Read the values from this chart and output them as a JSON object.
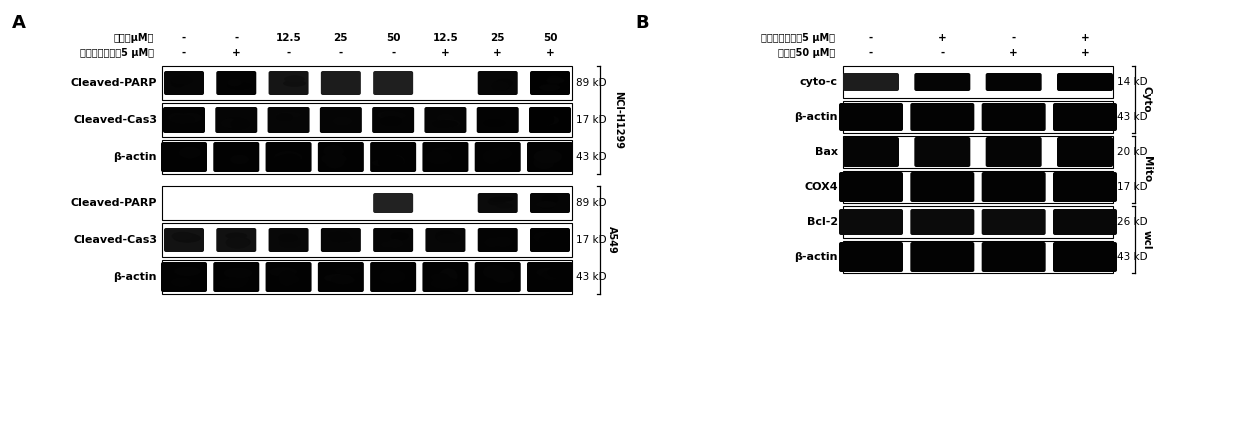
{
  "fig_width": 12.4,
  "fig_height": 4.26,
  "bg_color": "#ffffff",
  "panel_A": {
    "label": "A",
    "header_row1_label": "顺钓（μM）",
    "header_row1_values": [
      "-",
      "-",
      "12.5",
      "25",
      "50",
      "12.5",
      "25",
      "50"
    ],
    "header_row2_label": "蝠蝠葫苏林筹（5 μM）",
    "header_row2_values": [
      "-",
      "+",
      "-",
      "-",
      "-",
      "+",
      "+",
      "+"
    ],
    "ncih_label": "NCI-H1299",
    "a549_label": "A549",
    "rows_ncih": [
      {
        "name": "Cleaved-PARP",
        "kd": "89 kD"
      },
      {
        "name": "Cleaved-Cas3",
        "kd": "17 kD"
      },
      {
        "name": "β-actin",
        "kd": "43 kD"
      }
    ],
    "rows_a549": [
      {
        "name": "Cleaved-PARP",
        "kd": "89 kD"
      },
      {
        "name": "Cleaved-Cas3",
        "kd": "17 kD"
      },
      {
        "name": "β-actin",
        "kd": "43 kD"
      }
    ]
  },
  "panel_B": {
    "label": "B",
    "header_row1_label": "蝠蝠葫苏林筹（5 μM）",
    "header_row1_values": [
      "-",
      "+",
      "-",
      "+"
    ],
    "header_row2_label": "顺钓（50 μM）",
    "header_row2_values": [
      "-",
      "-",
      "+",
      "+"
    ],
    "cyto_label": "Cyto",
    "mito_label": "Mito",
    "wcl_label": "wcl",
    "rows": [
      {
        "name": "cyto-c",
        "kd": "14 kD",
        "group": "Cyto"
      },
      {
        "name": "β-actin",
        "kd": "43 kD",
        "group": "Cyto"
      },
      {
        "name": "Bax",
        "kd": "20 kD",
        "group": "Mito"
      },
      {
        "name": "COX4",
        "kd": "17 kD",
        "group": "Mito"
      },
      {
        "name": "Bcl-2",
        "kd": "26 kD",
        "group": "wcl"
      },
      {
        "name": "β-actin",
        "kd": "43 kD",
        "group": "wcl"
      }
    ]
  },
  "ncih_parp_bands": [
    0.85,
    0.92,
    0.45,
    0.28,
    0.18,
    0.0,
    0.82,
    0.97
  ],
  "ncih_cas3_bands": [
    0.92,
    0.88,
    0.85,
    0.87,
    0.9,
    0.86,
    0.93,
    0.97
  ],
  "ncih_bactin_bands": [
    0.95,
    0.95,
    0.95,
    0.95,
    0.95,
    0.95,
    0.95,
    0.95
  ],
  "a549_parp_bands": [
    0.0,
    0.0,
    0.0,
    0.0,
    0.12,
    0.0,
    0.72,
    0.88
  ],
  "a549_cas3_bands": [
    0.5,
    0.55,
    0.78,
    0.85,
    0.88,
    0.82,
    0.93,
    0.95
  ],
  "a549_bactin_bands": [
    0.95,
    0.95,
    0.95,
    0.95,
    0.95,
    0.95,
    0.95,
    0.95
  ],
  "b_cytoc_bands": [
    0.25,
    0.88,
    0.9,
    0.92
  ],
  "b_bactin_cyto_bands": [
    0.92,
    0.92,
    0.92,
    0.92
  ],
  "b_bax_bands": [
    0.88,
    0.85,
    0.87,
    0.9
  ],
  "b_cox4_bands": [
    0.92,
    0.92,
    0.92,
    0.92
  ],
  "b_bcl2_bands": [
    0.7,
    0.72,
    0.68,
    0.78
  ],
  "b_bactin_wcl_bands": [
    0.93,
    0.93,
    0.93,
    0.93
  ]
}
